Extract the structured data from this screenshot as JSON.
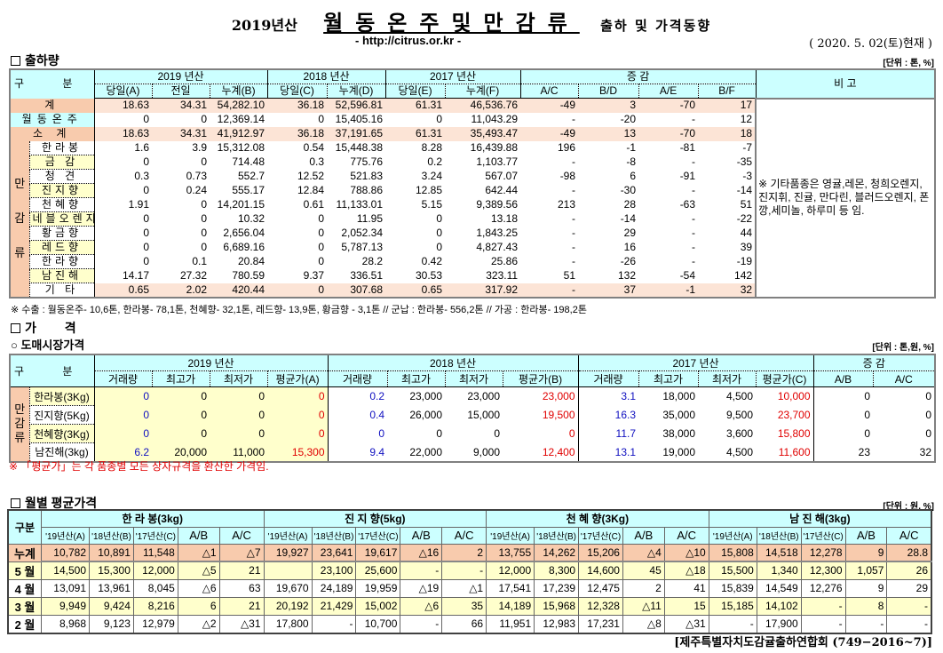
{
  "header": {
    "year": "2019년산",
    "title": "월동온주및만감류",
    "subtitle": "출하 및 가격동향",
    "url": "- http://citrus.or.kr -",
    "as_of": "( 2020. 5. 02(토)현재 )"
  },
  "shipment": {
    "section": "출하량",
    "unit": "[단위 : 톤, %]",
    "col_label": "구 분",
    "groups": [
      "2019 년산",
      "2018 년산",
      "2017 년산",
      "증 감"
    ],
    "remarks_header": "비 고",
    "columns": [
      "당일(A)",
      "전일",
      "누계(B)",
      "당일(C)",
      "누계(D)",
      "당일(E)",
      "누계(F)",
      "A/C",
      "B/D",
      "A/E",
      "B/F"
    ],
    "side_label": [
      "만",
      "감",
      "류"
    ],
    "rows": [
      {
        "label": "계",
        "values": [
          "18.63",
          "34.31",
          "54,282.10",
          "36.18",
          "52,596.81",
          "61.31",
          "46,536.76",
          "-49",
          "3",
          "-70",
          "17"
        ]
      },
      {
        "label": "월동온주",
        "values": [
          "0",
          "0",
          "12,369.14",
          "0",
          "15,405.16",
          "0",
          "11,043.29",
          "-",
          "-20",
          "-",
          "12"
        ]
      },
      {
        "label": "소 계",
        "values": [
          "18.63",
          "34.31",
          "41,912.97",
          "36.18",
          "37,191.65",
          "61.31",
          "35,493.47",
          "-49",
          "13",
          "-70",
          "18"
        ]
      },
      {
        "label": "한라봉",
        "values": [
          "1.6",
          "3.9",
          "15,312.08",
          "0.54",
          "15,448.38",
          "8.28",
          "16,439.88",
          "196",
          "-1",
          "-81",
          "-7"
        ]
      },
      {
        "label": "금 감",
        "values": [
          "0",
          "0",
          "714.48",
          "0.3",
          "775.76",
          "0.2",
          "1,103.77",
          "-",
          "-8",
          "-",
          "-35"
        ]
      },
      {
        "label": "청 견",
        "values": [
          "0.3",
          "0.73",
          "552.7",
          "12.52",
          "521.83",
          "3.24",
          "567.07",
          "-98",
          "6",
          "-91",
          "-3"
        ]
      },
      {
        "label": "진지향",
        "values": [
          "0",
          "0.24",
          "555.17",
          "12.84",
          "788.86",
          "12.85",
          "642.44",
          "-",
          "-30",
          "-",
          "-14"
        ]
      },
      {
        "label": "천혜향",
        "values": [
          "1.91",
          "0",
          "14,201.15",
          "0.61",
          "11,133.01",
          "5.15",
          "9,389.56",
          "213",
          "28",
          "-63",
          "51"
        ]
      },
      {
        "label": "네블오렌지",
        "values": [
          "0",
          "0",
          "10.32",
          "0",
          "11.95",
          "0",
          "13.18",
          "-",
          "-14",
          "-",
          "-22"
        ]
      },
      {
        "label": "황금향",
        "values": [
          "0",
          "0",
          "2,656.04",
          "0",
          "2,052.34",
          "0",
          "1,843.25",
          "-",
          "29",
          "-",
          "44"
        ]
      },
      {
        "label": "레드향",
        "values": [
          "0",
          "0",
          "6,689.16",
          "0",
          "5,787.13",
          "0",
          "4,827.43",
          "-",
          "16",
          "-",
          "39"
        ]
      },
      {
        "label": "한라향",
        "values": [
          "0",
          "0.1",
          "20.84",
          "0",
          "28.2",
          "0.42",
          "25.86",
          "-",
          "-26",
          "-",
          "-19"
        ]
      },
      {
        "label": "남진해",
        "values": [
          "14.17",
          "27.32",
          "780.59",
          "9.37",
          "336.51",
          "30.53",
          "323.11",
          "51",
          "132",
          "-54",
          "142"
        ]
      },
      {
        "label": "기 타",
        "values": [
          "0.65",
          "2.02",
          "420.44",
          "0",
          "307.68",
          "0.65",
          "317.92",
          "-",
          "37",
          "-1",
          "32"
        ]
      }
    ],
    "remarks": "※ 기타품종은 영귤,레몬, 청희오렌지, 진지휘, 진귤, 만다린, 블러드오렌지, 폰깡,세미놀, 하루미 등 임.",
    "footnote": "※ 수출 : 월동온주- 10,6톤, 한라봉- 78,1톤, 천혜향- 32,1톤, 레드향- 13,9톤, 황금향 - 3,1톤  // 군납 : 한라봉- 556,2톤 // 가공 : 한라봉- 198,2톤"
  },
  "price": {
    "section": "가 격",
    "subsection": "○ 도매시장가격",
    "unit": "[단위 : 톤,원, %]",
    "col_label": "구 분",
    "groups": [
      "2019 년산",
      "2018 년산",
      "2017 년산",
      "증 감"
    ],
    "columns": [
      "거래량",
      "최고가",
      "최저가",
      "평균가(A)",
      "거래량",
      "최고가",
      "최저가",
      "평균가(B)",
      "거래량",
      "최고가",
      "최저가",
      "평균가(C)",
      "A/B",
      "A/C"
    ],
    "side_label": "만감류",
    "rows": [
      {
        "label": "한라봉(3Kg)",
        "values": [
          "0",
          "0",
          "0",
          "0",
          "0.2",
          "23,000",
          "23,000",
          "23,000",
          "3.1",
          "18,000",
          "4,500",
          "10,000",
          "0",
          "0"
        ]
      },
      {
        "label": "진지향(5Kg)",
        "values": [
          "0",
          "0",
          "0",
          "0",
          "0.4",
          "26,000",
          "15,000",
          "19,500",
          "16.3",
          "35,000",
          "9,500",
          "23,700",
          "0",
          "0"
        ]
      },
      {
        "label": "천혜향(3Kg)",
        "values": [
          "0",
          "0",
          "0",
          "0",
          "0",
          "0",
          "0",
          "0",
          "11.7",
          "38,000",
          "3,600",
          "15,800",
          "0",
          "0"
        ]
      },
      {
        "label": "남진해(3kg)",
        "values": [
          "6.2",
          "20,000",
          "11,000",
          "15,300",
          "9.4",
          "22,000",
          "9,000",
          "12,400",
          "13.1",
          "19,000",
          "4,500",
          "11,600",
          "23",
          "32"
        ]
      }
    ],
    "footnote": "※ 「평균가」는 각 품종별 모든 상자규격을 환산한 가격임."
  },
  "monthly": {
    "section": "월별 평균가격",
    "unit": "[단위 : 원. %]",
    "col_label": "구분",
    "groups": [
      "한 라 봉(3kg)",
      "진 지 향(5kg)",
      "천 혜 향(3Kg)",
      "남 진 해(3kg)"
    ],
    "columns": [
      "'19년산(A)",
      "'18년산(B)",
      "'17년산(C)",
      "A/B",
      "A/C"
    ],
    "rows": [
      {
        "label": "누계",
        "values": [
          "10,782",
          "10,891",
          "11,548",
          "△1",
          "△7",
          "19,927",
          "23,641",
          "19,617",
          "△16",
          "2",
          "13,755",
          "14,262",
          "15,206",
          "△4",
          "△10",
          "15,808",
          "14,518",
          "12,278",
          "9",
          "28.8"
        ]
      },
      {
        "label": "5 월",
        "values": [
          "14,500",
          "15,300",
          "12,000",
          "△5",
          "21",
          "",
          "23,100",
          "25,600",
          "-",
          "-",
          "12,000",
          "8,300",
          "14,600",
          "45",
          "△18",
          "15,500",
          "1,340",
          "12,300",
          "1,057",
          "26"
        ]
      },
      {
        "label": "4 월",
        "values": [
          "13,091",
          "13,961",
          "8,045",
          "△6",
          "63",
          "19,670",
          "24,189",
          "19,959",
          "△19",
          "△1",
          "17,541",
          "17,239",
          "12,475",
          "2",
          "41",
          "15,839",
          "14,549",
          "12,276",
          "9",
          "29"
        ]
      },
      {
        "label": "3 월",
        "values": [
          "9,949",
          "9,424",
          "8,216",
          "6",
          "21",
          "20,192",
          "21,429",
          "15,002",
          "△6",
          "35",
          "14,189",
          "15,968",
          "12,328",
          "△11",
          "15",
          "15,185",
          "14,102",
          "-",
          "8",
          "-"
        ]
      },
      {
        "label": "2 월",
        "values": [
          "8,968",
          "9,123",
          "12,979",
          "△2",
          "△31",
          "17,800",
          "-",
          "10,700",
          "-",
          "66",
          "11,951",
          "12,983",
          "17,231",
          "△8",
          "△31",
          "-",
          "17,900",
          "-",
          "-",
          "-"
        ]
      }
    ]
  },
  "footer": "[제주특별자치도감귤출하연합회 (749−2016~7)]"
}
